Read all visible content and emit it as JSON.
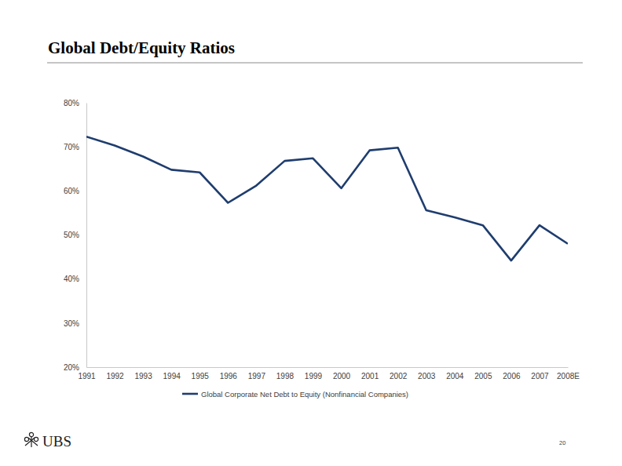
{
  "chart_data": {
    "type": "line",
    "title": "Global Debt/Equity Ratios",
    "categories": [
      "1991",
      "1992",
      "1993",
      "1994",
      "1995",
      "1996",
      "1997",
      "1998",
      "1999",
      "2000",
      "2001",
      "2002",
      "2003",
      "2004",
      "2005",
      "2006",
      "2007",
      "2008E"
    ],
    "series": [
      {
        "name": "Global Corporate Net Debt to Equity (Nonfinancial Companies)",
        "color": "#1f3d6e",
        "values": [
          72.3,
          70.3,
          67.8,
          64.8,
          64.2,
          57.3,
          61.2,
          66.8,
          67.4,
          60.6,
          69.2,
          69.8,
          55.6,
          54.0,
          52.2,
          44.2,
          52.2,
          48.0
        ]
      }
    ],
    "ylim": [
      20,
      80
    ],
    "yticks": [
      {
        "value": 20,
        "label": "20%"
      },
      {
        "value": 30,
        "label": "30%"
      },
      {
        "value": 40,
        "label": "40%"
      },
      {
        "value": 50,
        "label": "50%"
      },
      {
        "value": 60,
        "label": "60%"
      },
      {
        "value": 70,
        "label": "70%"
      },
      {
        "value": 80,
        "label": "80%"
      }
    ],
    "grid": false,
    "legend": "bottom"
  },
  "footer": {
    "logo": "UBS",
    "page_number": "20"
  }
}
